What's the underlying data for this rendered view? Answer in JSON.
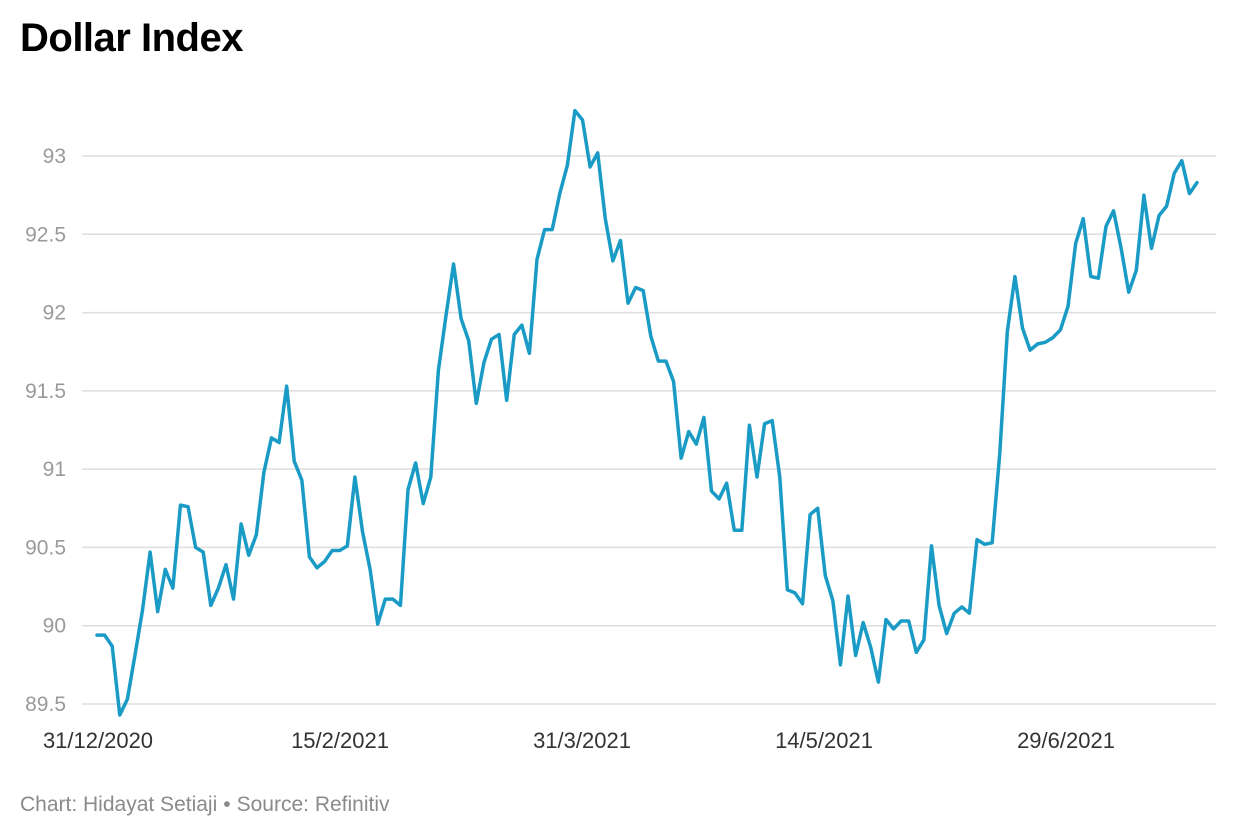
{
  "title": "Dollar Index",
  "footer": {
    "chart_credit": "Chart: Hidayat Setiaji",
    "separator": "•",
    "source": "Source: Refinitiv"
  },
  "colors": {
    "line": "#1a9bc6",
    "grid": "#dedede",
    "axis_text": "#9a9a9a",
    "x_axis_text": "#333333"
  },
  "chart_data": {
    "type": "line",
    "title": "Dollar Index",
    "xlabel": "",
    "ylabel": "",
    "ylim": [
      89.5,
      93.4
    ],
    "yticks": [
      89.5,
      90,
      90.5,
      91,
      91.5,
      92,
      92.5,
      93
    ],
    "ytick_labels": [
      "89.5",
      "90",
      "90.5",
      "91",
      "91.5",
      "92",
      "92.5",
      "93"
    ],
    "xtick_labels": [
      "31/12/2020",
      "15/2/2021",
      "31/3/2021",
      "14/5/2021",
      "29/6/2021"
    ],
    "grid": true,
    "series": [
      {
        "values": [
          89.94,
          89.94,
          89.87,
          89.43,
          89.53,
          89.81,
          90.1,
          90.47,
          90.09,
          90.36,
          90.24,
          90.77,
          90.76,
          90.5,
          90.47,
          90.13,
          90.24,
          90.39,
          90.17,
          90.65,
          90.45,
          90.58,
          90.98,
          91.2,
          91.17,
          91.53,
          91.05,
          90.93,
          90.44,
          90.37,
          90.41,
          90.48,
          90.48,
          90.51,
          90.95,
          90.6,
          90.36,
          90.01,
          90.17,
          90.17,
          90.13,
          90.87,
          91.04,
          90.78,
          90.95,
          91.63,
          91.98,
          92.31,
          91.96,
          91.82,
          91.42,
          91.68,
          91.83,
          91.86,
          91.44,
          91.86,
          91.92,
          91.74,
          92.34,
          92.53,
          92.53,
          92.76,
          92.94,
          93.29,
          93.23,
          92.93,
          93.02,
          92.6,
          92.33,
          92.46,
          92.06,
          92.16,
          92.14,
          91.85,
          91.69,
          91.69,
          91.56,
          91.07,
          91.24,
          91.16,
          91.33,
          90.86,
          90.81,
          90.91,
          90.61,
          90.61,
          91.28,
          90.95,
          91.29,
          91.31,
          90.95,
          90.23,
          90.21,
          90.14,
          90.71,
          90.75,
          90.32,
          90.16,
          89.75,
          90.19,
          89.81,
          90.02,
          89.86,
          89.64,
          90.04,
          89.98,
          90.03,
          90.03,
          89.83,
          89.91,
          90.51,
          90.13,
          89.95,
          90.08,
          90.12,
          90.08,
          90.55,
          90.52,
          90.53,
          91.1,
          91.88,
          92.23,
          91.9,
          91.76,
          91.8,
          91.81,
          91.84,
          91.89,
          92.04,
          92.44,
          92.6,
          92.23,
          92.22,
          92.55,
          92.65,
          92.41,
          92.13,
          92.27,
          92.75,
          92.41,
          92.62,
          92.68,
          92.89,
          92.97,
          92.76,
          92.83
        ]
      }
    ]
  }
}
